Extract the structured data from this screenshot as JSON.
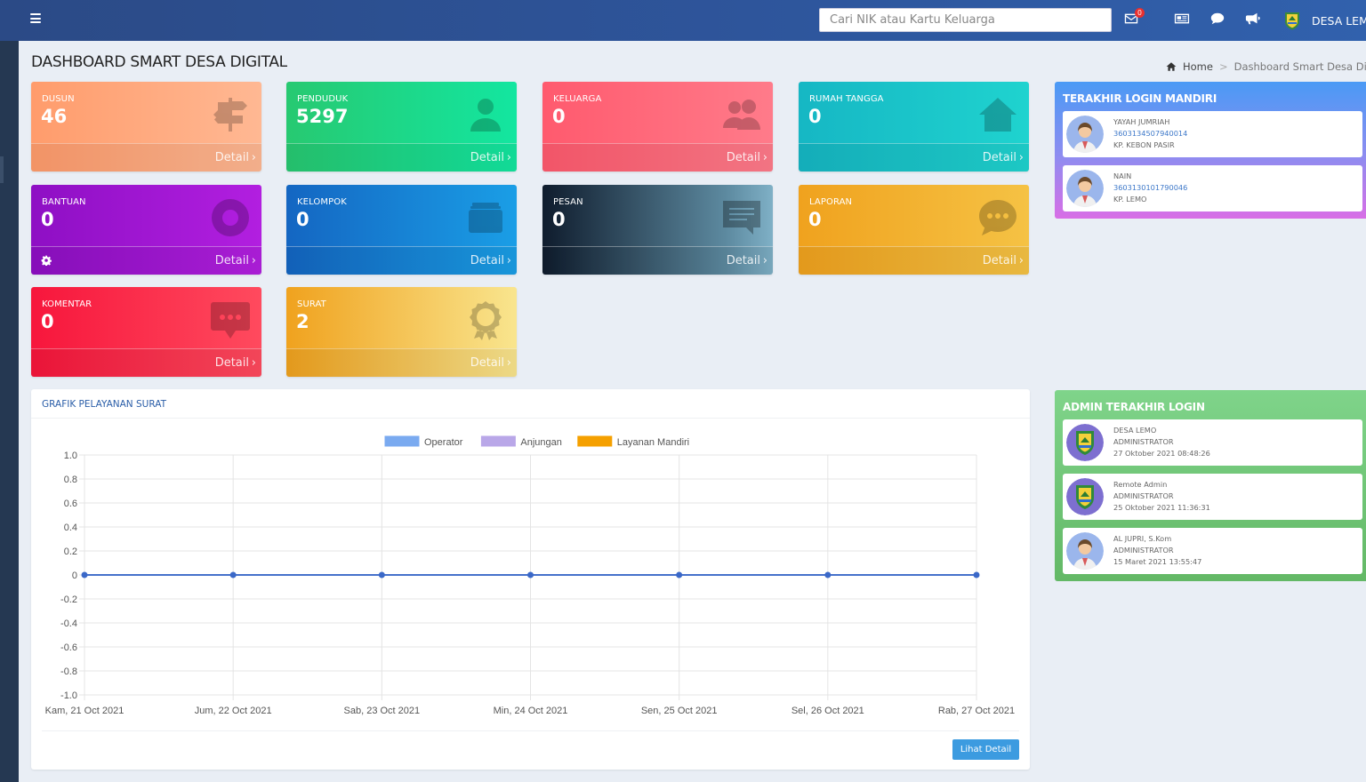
{
  "topbar": {
    "search_placeholder": "Cari NIK atau Kartu Keluarga",
    "mail_badge": "0",
    "user_name": "DESA LEMO"
  },
  "header": {
    "page_title": "DASHBOARD SMART DESA DIGITAL",
    "breadcrumb": [
      "Home",
      "Dashboard Smart Desa Digital"
    ]
  },
  "cards": [
    {
      "label": "DUSUN",
      "value": "46",
      "detail": "Detail",
      "icon": "signpost-icon"
    },
    {
      "label": "PENDUDUK",
      "value": "5297",
      "detail": "Detail",
      "icon": "user-icon"
    },
    {
      "label": "KELUARGA",
      "value": "0",
      "detail": "Detail",
      "icon": "users-icon"
    },
    {
      "label": "RUMAH TANGGA",
      "value": "0",
      "detail": "Detail",
      "icon": "home-icon"
    },
    {
      "label": "BANTUAN",
      "value": "0",
      "detail": "Detail",
      "icon": "lifebuoy-icon"
    },
    {
      "label": "KELOMPOK",
      "value": "0",
      "detail": "Detail",
      "icon": "folder-icon"
    },
    {
      "label": "PESAN",
      "value": "0",
      "detail": "Detail",
      "icon": "message-icon"
    },
    {
      "label": "LAPORAN",
      "value": "0",
      "detail": "Detail",
      "icon": "chat-bubble-icon"
    },
    {
      "label": "KOMENTAR",
      "value": "0",
      "detail": "Detail",
      "icon": "comment-icon"
    },
    {
      "label": "SURAT",
      "value": "2",
      "detail": "Detail",
      "icon": "award-icon"
    }
  ],
  "chart": {
    "title": "GRAFIK PELAYANAN SURAT",
    "button_label": "Lihat Detail"
  },
  "chart_data": {
    "type": "line",
    "categories": [
      "Kam, 21 Oct 2021",
      "Jum, 22 Oct 2021",
      "Sab, 23 Oct 2021",
      "Min, 24 Oct 2021",
      "Sen, 25 Oct 2021",
      "Sel, 26 Oct 2021",
      "Rab, 27 Oct 2021"
    ],
    "series": [
      {
        "name": "Operator",
        "values": [
          0,
          0,
          0,
          0,
          0,
          0,
          0
        ],
        "color": "#7aaaf0"
      },
      {
        "name": "Anjungan",
        "values": [
          0,
          0,
          0,
          0,
          0,
          0,
          0
        ],
        "color": "#b9a7e8"
      },
      {
        "name": "Layanan Mandiri",
        "values": [
          0,
          0,
          0,
          0,
          0,
          0,
          0
        ],
        "color": "#f5a000"
      }
    ],
    "ylim": [
      -1.0,
      1.0
    ],
    "yticks": [
      "1.0",
      "0.8",
      "0.6",
      "0.4",
      "0.2",
      "0",
      "-0.2",
      "-0.4",
      "-0.6",
      "-0.8",
      "-1.0"
    ],
    "grid": true,
    "legend": "top-center",
    "line_color": "#3a68c8"
  },
  "mandiri": {
    "title": "TERAKHIR LOGIN MANDIRI",
    "items": [
      {
        "name": "YAYAH JUMRIAH",
        "nik": "3603134507940014",
        "place": "KP. KEBON PASIR"
      },
      {
        "name": "NAIN",
        "nik": "3603130101790046",
        "place": "KP. LEMO"
      }
    ]
  },
  "admin": {
    "title": "ADMIN TERAKHIR LOGIN",
    "items": [
      {
        "name": "DESA LEMO",
        "role": "ADMINISTRATOR",
        "time": "27 Oktober 2021 08:48:26",
        "avatar": "logo"
      },
      {
        "name": "Remote Admin",
        "role": "ADMINISTRATOR",
        "time": "25 Oktober 2021 11:36:31",
        "avatar": "logo"
      },
      {
        "name": "AL JUPRI, S.Kom",
        "role": "ADMINISTRATOR",
        "time": "15 Maret 2021 13:55:47",
        "avatar": "person"
      }
    ]
  }
}
